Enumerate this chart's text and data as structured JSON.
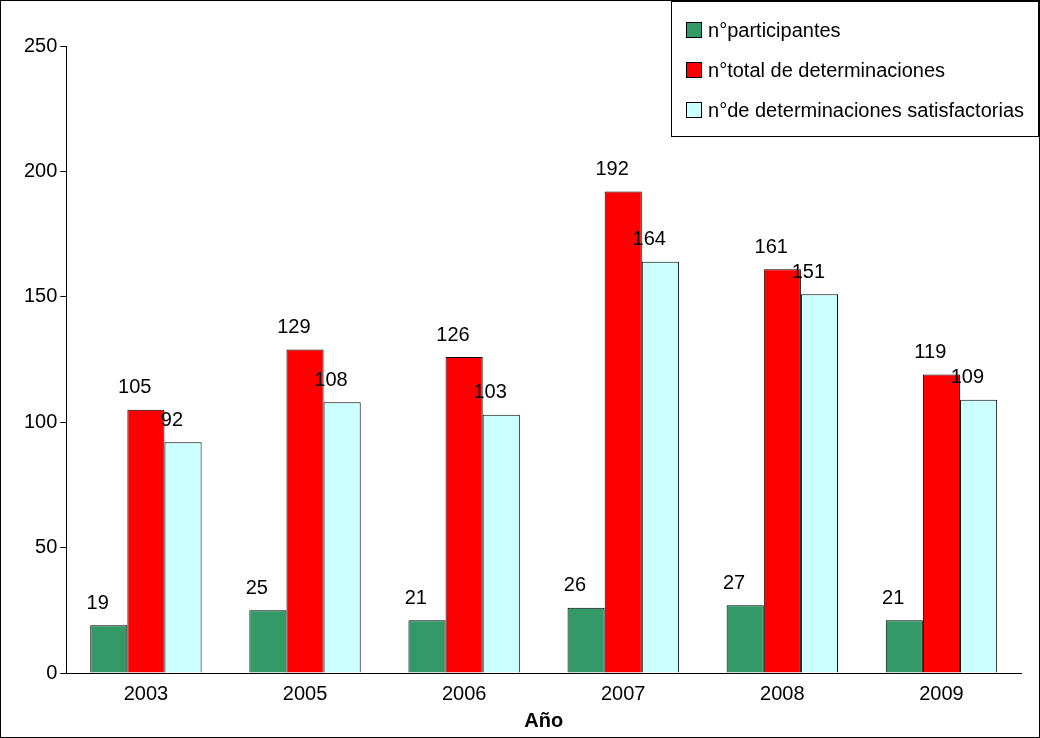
{
  "chart_data": {
    "type": "bar",
    "xlabel": "Año",
    "categories": [
      "2003",
      "2005",
      "2006",
      "2007",
      "2008",
      "2009"
    ],
    "series": [
      {
        "name": "n°participantes",
        "color": "#339966",
        "values": [
          19,
          25,
          21,
          26,
          27,
          21
        ]
      },
      {
        "name": "n°total de determinaciones",
        "color": "#ff0000",
        "values": [
          105,
          129,
          126,
          192,
          161,
          119
        ]
      },
      {
        "name": "n°de determinaciones satisfactorias",
        "color": "#ccffff",
        "values": [
          92,
          108,
          103,
          164,
          151,
          109
        ]
      }
    ],
    "ylim": [
      0,
      250
    ],
    "yticks": [
      0,
      50,
      100,
      150,
      200,
      250
    ],
    "grid": false,
    "legend": "top right",
    "data_labels": true
  }
}
